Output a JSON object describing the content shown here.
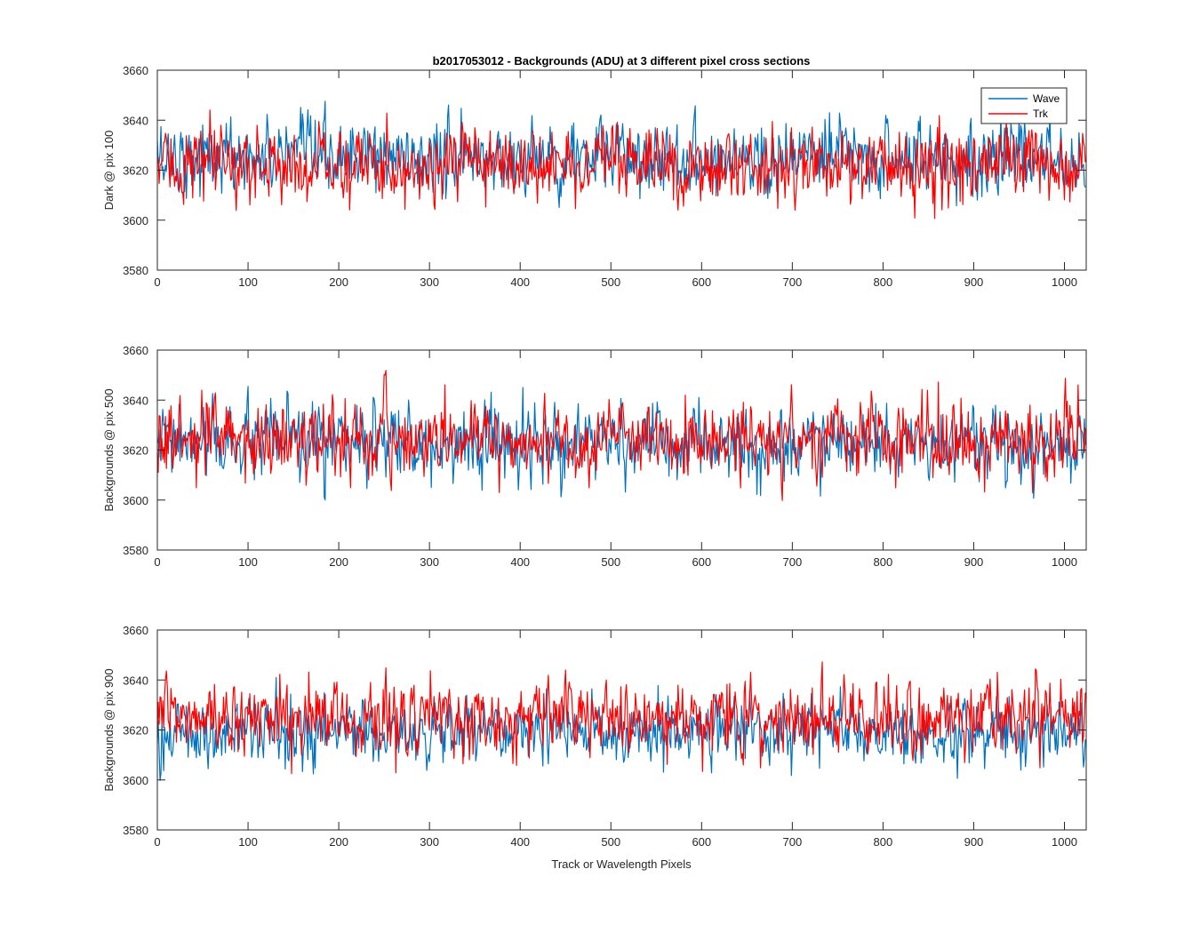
{
  "chart_data": {
    "type": "line",
    "title": "b2017053012 - Backgrounds (ADU) at 3 different pixel cross sections",
    "xlabel": "Track or Wavelength Pixels",
    "legend": {
      "placement": "top-right",
      "entries": [
        "Wave",
        "Trk"
      ]
    },
    "colors": {
      "Wave": "#0072BD",
      "Trk": "#FF0000"
    },
    "grid": false,
    "x_points": 1024,
    "subplots": [
      {
        "ylabel": "Dark @ pix 100",
        "xlim": [
          0,
          1024
        ],
        "ylim": [
          3580,
          3660
        ],
        "xticks": [
          0,
          100,
          200,
          300,
          400,
          500,
          600,
          700,
          800,
          900,
          1000
        ],
        "yticks": [
          3580,
          3600,
          3620,
          3640,
          3660
        ],
        "series": [
          {
            "name": "Wave",
            "mean": 3625,
            "spread": 7,
            "min": 3601,
            "max": 3655
          },
          {
            "name": "Trk",
            "mean": 3622,
            "spread": 7,
            "min": 3596,
            "max": 3650
          }
        ]
      },
      {
        "ylabel": "Backgrounds @ pix 500",
        "xlim": [
          0,
          1024
        ],
        "ylim": [
          3580,
          3660
        ],
        "xticks": [
          0,
          100,
          200,
          300,
          400,
          500,
          600,
          700,
          800,
          900,
          1000
        ],
        "yticks": [
          3580,
          3600,
          3620,
          3640,
          3660
        ],
        "series": [
          {
            "name": "Wave",
            "mean": 3623,
            "spread": 7,
            "min": 3600,
            "max": 3650
          },
          {
            "name": "Trk",
            "mean": 3624,
            "spread": 7,
            "min": 3597,
            "max": 3653
          }
        ]
      },
      {
        "ylabel": "Backgrounds @ pix 900",
        "xlim": [
          0,
          1024
        ],
        "ylim": [
          3580,
          3660
        ],
        "xticks": [
          0,
          100,
          200,
          300,
          400,
          500,
          600,
          700,
          800,
          900,
          1000
        ],
        "yticks": [
          3580,
          3600,
          3620,
          3640,
          3660
        ],
        "series": [
          {
            "name": "Wave",
            "mean": 3619,
            "spread": 6,
            "min": 3598,
            "max": 3649
          },
          {
            "name": "Trk",
            "mean": 3625,
            "spread": 7,
            "min": 3595,
            "max": 3653
          }
        ]
      }
    ]
  }
}
